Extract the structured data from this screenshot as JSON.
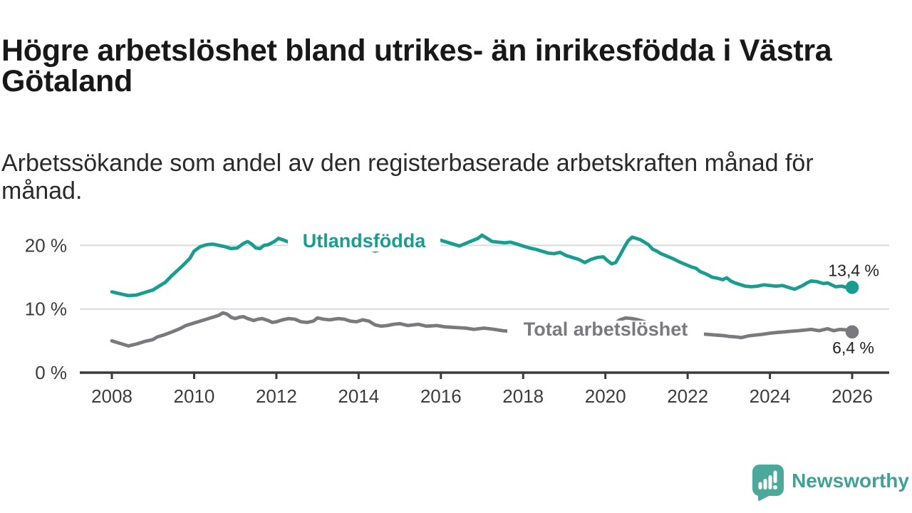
{
  "header": {
    "title": "Högre arbetslöshet bland utrikes- än inrikesfödda i Västra\nGötaland",
    "subtitle": "Arbetssökande som andel av den registerbaserade arbetskraften månad för\nmånad."
  },
  "footer": {
    "brand": "Newsworthy"
  },
  "colors": {
    "teal": "#189e90",
    "gray": "#797a7e",
    "logo_teal": "#4ba89b",
    "axis": "#3b3b3b",
    "grid": "#dadada"
  },
  "chart_data": {
    "type": "line",
    "title": "Högre arbetslöshet bland utrikes- än inrikesfödda i Västra Götaland",
    "subtitle": "Arbetssökande som andel av den registerbaserade arbetskraften månad för månad.",
    "xlabel": "",
    "ylabel": "",
    "grid": "horizontal",
    "legend_position": "inline-labels",
    "x_axis": {
      "min": 2008,
      "max": 2026,
      "ticks": [
        {
          "v": 2008,
          "label": "2008"
        },
        {
          "v": 2010,
          "label": "2010"
        },
        {
          "v": 2012,
          "label": "2012"
        },
        {
          "v": 2014,
          "label": "2014"
        },
        {
          "v": 2016,
          "label": "2016"
        },
        {
          "v": 2018,
          "label": "2018"
        },
        {
          "v": 2020,
          "label": "2020"
        },
        {
          "v": 2022,
          "label": "2022"
        },
        {
          "v": 2024,
          "label": "2024"
        },
        {
          "v": 2026,
          "label": "2026"
        }
      ]
    },
    "y_axis": {
      "min": 0,
      "max": 23,
      "ticks": [
        {
          "v": 0,
          "label": "0 %"
        },
        {
          "v": 10,
          "label": "10 %"
        },
        {
          "v": 20,
          "label": "20 %"
        }
      ]
    },
    "series": [
      {
        "name": "Total arbetslöshet",
        "color_key": "gray",
        "end_label": "6,4 %",
        "end_value": 6.4,
        "points": [
          [
            2008.0,
            5.0
          ],
          [
            2008.2,
            4.6
          ],
          [
            2008.4,
            4.2
          ],
          [
            2008.6,
            4.5
          ],
          [
            2008.8,
            4.9
          ],
          [
            2009.0,
            5.2
          ],
          [
            2009.1,
            5.6
          ],
          [
            2009.3,
            6.0
          ],
          [
            2009.5,
            6.5
          ],
          [
            2009.65,
            6.9
          ],
          [
            2009.8,
            7.4
          ],
          [
            2010.0,
            7.8
          ],
          [
            2010.15,
            8.1
          ],
          [
            2010.3,
            8.4
          ],
          [
            2010.45,
            8.7
          ],
          [
            2010.6,
            9.0
          ],
          [
            2010.7,
            9.4
          ],
          [
            2010.8,
            9.2
          ],
          [
            2010.9,
            8.7
          ],
          [
            2011.0,
            8.5
          ],
          [
            2011.1,
            8.7
          ],
          [
            2011.2,
            8.8
          ],
          [
            2011.3,
            8.5
          ],
          [
            2011.45,
            8.2
          ],
          [
            2011.55,
            8.4
          ],
          [
            2011.65,
            8.5
          ],
          [
            2011.8,
            8.2
          ],
          [
            2011.9,
            7.9
          ],
          [
            2012.0,
            8.0
          ],
          [
            2012.15,
            8.3
          ],
          [
            2012.3,
            8.5
          ],
          [
            2012.45,
            8.4
          ],
          [
            2012.6,
            8.0
          ],
          [
            2012.75,
            7.9
          ],
          [
            2012.9,
            8.1
          ],
          [
            2013.0,
            8.6
          ],
          [
            2013.15,
            8.4
          ],
          [
            2013.3,
            8.3
          ],
          [
            2013.5,
            8.5
          ],
          [
            2013.65,
            8.4
          ],
          [
            2013.8,
            8.1
          ],
          [
            2013.95,
            8.0
          ],
          [
            2014.1,
            8.3
          ],
          [
            2014.25,
            8.1
          ],
          [
            2014.4,
            7.5
          ],
          [
            2014.55,
            7.3
          ],
          [
            2014.7,
            7.4
          ],
          [
            2014.85,
            7.6
          ],
          [
            2015.0,
            7.7
          ],
          [
            2015.2,
            7.4
          ],
          [
            2015.45,
            7.6
          ],
          [
            2015.65,
            7.3
          ],
          [
            2015.9,
            7.4
          ],
          [
            2016.1,
            7.2
          ],
          [
            2016.35,
            7.1
          ],
          [
            2016.6,
            7.0
          ],
          [
            2016.8,
            6.8
          ],
          [
            2017.05,
            7.0
          ],
          [
            2017.3,
            6.8
          ],
          [
            2017.5,
            6.6
          ],
          [
            2017.7,
            6.5
          ],
          [
            2017.9,
            6.4
          ],
          [
            2018.1,
            6.3
          ],
          [
            2018.3,
            6.2
          ],
          [
            2018.5,
            6.2
          ],
          [
            2018.7,
            6.1
          ],
          [
            2018.9,
            6.2
          ],
          [
            2019.1,
            6.2
          ],
          [
            2019.3,
            6.3
          ],
          [
            2019.5,
            6.3
          ],
          [
            2019.7,
            6.4
          ],
          [
            2019.9,
            6.5
          ],
          [
            2020.0,
            6.6
          ],
          [
            2020.1,
            7.0
          ],
          [
            2020.2,
            7.6
          ],
          [
            2020.35,
            8.3
          ],
          [
            2020.5,
            8.6
          ],
          [
            2020.65,
            8.5
          ],
          [
            2020.8,
            8.3
          ],
          [
            2020.95,
            8.0
          ],
          [
            2021.1,
            7.7
          ],
          [
            2021.3,
            7.4
          ],
          [
            2021.5,
            7.1
          ],
          [
            2021.7,
            6.8
          ],
          [
            2021.9,
            6.5
          ],
          [
            2022.1,
            6.3
          ],
          [
            2022.3,
            6.1
          ],
          [
            2022.5,
            6.0
          ],
          [
            2022.7,
            5.9
          ],
          [
            2022.9,
            5.8
          ],
          [
            2023.0,
            5.7
          ],
          [
            2023.2,
            5.6
          ],
          [
            2023.3,
            5.5
          ],
          [
            2023.5,
            5.8
          ],
          [
            2023.65,
            5.9
          ],
          [
            2023.8,
            6.0
          ],
          [
            2024.0,
            6.2
          ],
          [
            2024.15,
            6.3
          ],
          [
            2024.35,
            6.4
          ],
          [
            2024.5,
            6.5
          ],
          [
            2024.7,
            6.6
          ],
          [
            2024.85,
            6.7
          ],
          [
            2025.0,
            6.8
          ],
          [
            2025.2,
            6.6
          ],
          [
            2025.4,
            6.9
          ],
          [
            2025.55,
            6.6
          ],
          [
            2025.7,
            6.8
          ],
          [
            2025.9,
            6.7
          ],
          [
            2026.0,
            6.4
          ]
        ]
      },
      {
        "name": "Utlandsfödda",
        "color_key": "teal",
        "end_label": "13,4 %",
        "end_value": 13.4,
        "points": [
          [
            2008.0,
            12.7
          ],
          [
            2008.2,
            12.4
          ],
          [
            2008.4,
            12.1
          ],
          [
            2008.6,
            12.2
          ],
          [
            2008.8,
            12.6
          ],
          [
            2009.0,
            13.0
          ],
          [
            2009.1,
            13.4
          ],
          [
            2009.3,
            14.2
          ],
          [
            2009.45,
            15.2
          ],
          [
            2009.6,
            16.1
          ],
          [
            2009.75,
            17.0
          ],
          [
            2009.9,
            18.0
          ],
          [
            2010.0,
            19.1
          ],
          [
            2010.15,
            19.8
          ],
          [
            2010.3,
            20.1
          ],
          [
            2010.45,
            20.2
          ],
          [
            2010.6,
            20.0
          ],
          [
            2010.75,
            19.8
          ],
          [
            2010.9,
            19.5
          ],
          [
            2011.05,
            19.6
          ],
          [
            2011.2,
            20.3
          ],
          [
            2011.3,
            20.6
          ],
          [
            2011.4,
            20.2
          ],
          [
            2011.5,
            19.6
          ],
          [
            2011.6,
            19.5
          ],
          [
            2011.7,
            20.0
          ],
          [
            2011.8,
            20.1
          ],
          [
            2011.95,
            20.6
          ],
          [
            2012.05,
            21.1
          ],
          [
            2012.15,
            20.9
          ],
          [
            2012.3,
            20.5
          ],
          [
            2012.45,
            20.3
          ],
          [
            2012.6,
            20.1
          ],
          [
            2012.8,
            20.3
          ],
          [
            2013.0,
            20.5
          ],
          [
            2013.2,
            20.3
          ],
          [
            2013.4,
            20.2
          ],
          [
            2013.6,
            20.3
          ],
          [
            2013.8,
            20.1
          ],
          [
            2014.0,
            20.0
          ],
          [
            2014.2,
            19.6
          ],
          [
            2014.4,
            19.1
          ],
          [
            2014.55,
            19.4
          ],
          [
            2014.7,
            19.7
          ],
          [
            2014.9,
            20.0
          ],
          [
            2015.1,
            20.2
          ],
          [
            2015.3,
            20.3
          ],
          [
            2015.5,
            20.4
          ],
          [
            2015.7,
            20.5
          ],
          [
            2015.9,
            20.7
          ],
          [
            2016.0,
            20.8
          ],
          [
            2016.15,
            20.5
          ],
          [
            2016.3,
            20.2
          ],
          [
            2016.45,
            19.9
          ],
          [
            2016.6,
            20.3
          ],
          [
            2016.75,
            20.7
          ],
          [
            2016.9,
            21.1
          ],
          [
            2017.0,
            21.6
          ],
          [
            2017.1,
            21.2
          ],
          [
            2017.25,
            20.6
          ],
          [
            2017.4,
            20.5
          ],
          [
            2017.55,
            20.4
          ],
          [
            2017.7,
            20.5
          ],
          [
            2017.85,
            20.2
          ],
          [
            2018.0,
            19.9
          ],
          [
            2018.15,
            19.6
          ],
          [
            2018.3,
            19.4
          ],
          [
            2018.45,
            19.1
          ],
          [
            2018.6,
            18.8
          ],
          [
            2018.75,
            18.7
          ],
          [
            2018.9,
            18.9
          ],
          [
            2019.05,
            18.4
          ],
          [
            2019.2,
            18.1
          ],
          [
            2019.35,
            17.8
          ],
          [
            2019.5,
            17.3
          ],
          [
            2019.65,
            17.8
          ],
          [
            2019.8,
            18.1
          ],
          [
            2019.95,
            18.2
          ],
          [
            2020.05,
            17.6
          ],
          [
            2020.15,
            17.1
          ],
          [
            2020.25,
            17.3
          ],
          [
            2020.35,
            18.4
          ],
          [
            2020.45,
            19.6
          ],
          [
            2020.55,
            20.7
          ],
          [
            2020.65,
            21.3
          ],
          [
            2020.75,
            21.1
          ],
          [
            2020.85,
            20.9
          ],
          [
            2020.95,
            20.5
          ],
          [
            2021.05,
            20.1
          ],
          [
            2021.15,
            19.4
          ],
          [
            2021.25,
            19.1
          ],
          [
            2021.35,
            18.7
          ],
          [
            2021.5,
            18.3
          ],
          [
            2021.65,
            17.9
          ],
          [
            2021.8,
            17.4
          ],
          [
            2021.95,
            17.0
          ],
          [
            2022.1,
            16.6
          ],
          [
            2022.2,
            16.4
          ],
          [
            2022.3,
            15.9
          ],
          [
            2022.45,
            15.5
          ],
          [
            2022.6,
            15.0
          ],
          [
            2022.75,
            14.8
          ],
          [
            2022.85,
            14.6
          ],
          [
            2022.95,
            14.9
          ],
          [
            2023.05,
            14.4
          ],
          [
            2023.15,
            14.1
          ],
          [
            2023.25,
            13.9
          ],
          [
            2023.4,
            13.6
          ],
          [
            2023.55,
            13.5
          ],
          [
            2023.7,
            13.6
          ],
          [
            2023.85,
            13.8
          ],
          [
            2024.0,
            13.7
          ],
          [
            2024.15,
            13.6
          ],
          [
            2024.3,
            13.7
          ],
          [
            2024.45,
            13.4
          ],
          [
            2024.6,
            13.1
          ],
          [
            2024.7,
            13.4
          ],
          [
            2024.8,
            13.7
          ],
          [
            2024.9,
            14.1
          ],
          [
            2025.0,
            14.4
          ],
          [
            2025.15,
            14.3
          ],
          [
            2025.3,
            14.0
          ],
          [
            2025.4,
            14.1
          ],
          [
            2025.5,
            13.8
          ],
          [
            2025.6,
            13.5
          ],
          [
            2025.75,
            13.6
          ],
          [
            2025.85,
            13.4
          ],
          [
            2026.0,
            13.4
          ]
        ]
      }
    ]
  }
}
